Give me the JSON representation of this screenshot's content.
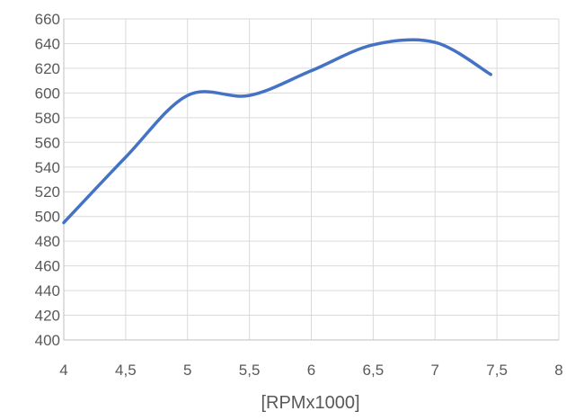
{
  "chart_data": {
    "type": "line",
    "title": "",
    "xlabel": "[RPMx1000]",
    "ylabel": "",
    "xlim": [
      4,
      8
    ],
    "ylim": [
      400,
      660
    ],
    "x_ticks": [
      4,
      4.5,
      5,
      5.5,
      6,
      6.5,
      7,
      7.5,
      8
    ],
    "x_tick_labels": [
      "4",
      "4,5",
      "5",
      "5,5",
      "6",
      "6,5",
      "7",
      "7,5",
      "8"
    ],
    "y_ticks": [
      400,
      420,
      440,
      460,
      480,
      500,
      520,
      540,
      560,
      580,
      600,
      620,
      640,
      660
    ],
    "grid": true,
    "smooth": true,
    "legend": "none",
    "series": [
      {
        "color": "#4472C4",
        "x": [
          4,
          4.5,
          5,
          5.5,
          6,
          6.5,
          7,
          7.45
        ],
        "y": [
          495,
          548,
          598,
          598,
          618,
          639,
          641,
          615
        ]
      }
    ]
  }
}
